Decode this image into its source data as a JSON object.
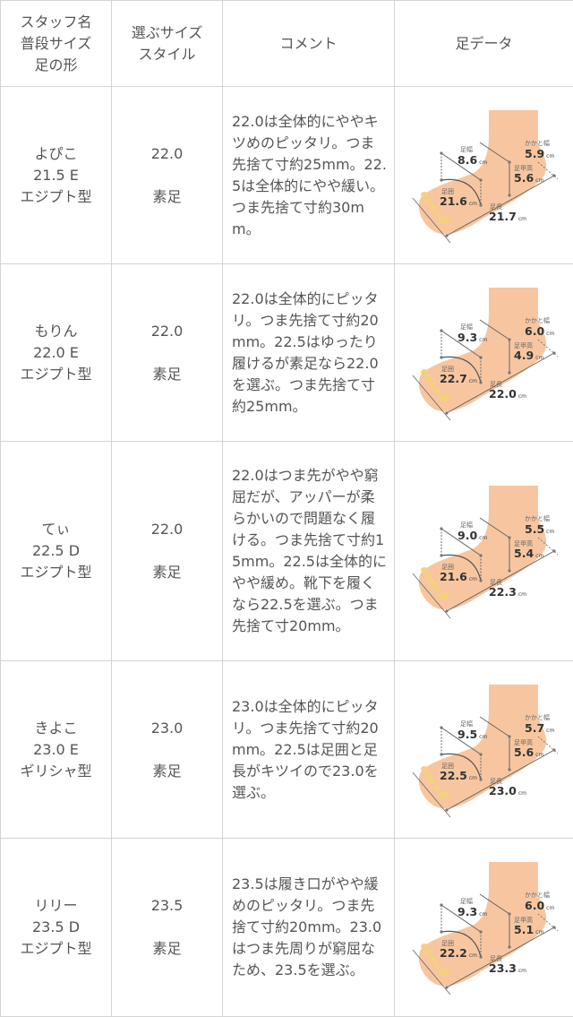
{
  "header": {
    "col1": [
      "スタッフ名",
      "普段サイズ",
      "足の形"
    ],
    "col2": [
      "選ぶサイズ",
      "スタイル"
    ],
    "col3": "コメント",
    "col4": "足データ"
  },
  "foot_labels": {
    "width": "足幅",
    "heel_width": "かかと幅",
    "instep": "足甲高",
    "girth": "足囲",
    "length": "足長",
    "unit": "cm"
  },
  "rows": [
    {
      "name": "よぴこ",
      "usual": "21.5 E",
      "shape": "エジプト型",
      "size": "22.0",
      "style": "素足",
      "comment": "22.0は全体的にややキツめのピッタリ。つま先捨て寸約25mm。22.5は全体的にやや緩い。つま先捨て寸約30mm。",
      "foot": {
        "width": "8.6",
        "heel_width": "5.9",
        "instep": "5.6",
        "girth": "21.6",
        "length": "21.7"
      }
    },
    {
      "name": "もりん",
      "usual": "22.0 E",
      "shape": "エジプト型",
      "size": "22.0",
      "style": "素足",
      "comment": "22.0は全体的にピッタリ。つま先捨て寸約20mm。22.5はゆったり履けるが素足なら22.0を選ぶ。つま先捨て寸約25mm。",
      "foot": {
        "width": "9.3",
        "heel_width": "6.0",
        "instep": "4.9",
        "girth": "22.7",
        "length": "22.0"
      }
    },
    {
      "name": "てぃ",
      "usual": "22.5 D",
      "shape": "エジプト型",
      "size": "22.0",
      "style": "素足",
      "comment": "22.0はつま先がやや窮屈だが、アッパーが柔らかいので問題なく履ける。つま先捨て寸約15mm。22.5は全体的にやや緩め。靴下を履くなら22.5を選ぶ。つま先捨て寸20mm。",
      "foot": {
        "width": "9.0",
        "heel_width": "5.5",
        "instep": "5.4",
        "girth": "21.6",
        "length": "22.3"
      }
    },
    {
      "name": "きよこ",
      "usual": "23.0 E",
      "shape": "ギリシャ型",
      "size": "23.0",
      "style": "素足",
      "comment": "23.0は全体的にピッタリ。つま先捨て寸約20mm。22.5は足囲と足長がキツイので23.0を選ぶ。",
      "foot": {
        "width": "9.5",
        "heel_width": "5.7",
        "instep": "5.6",
        "girth": "22.5",
        "length": "23.0"
      }
    },
    {
      "name": "リリー",
      "usual": "23.5 D",
      "shape": "エジプト型",
      "size": "23.5",
      "style": "素足",
      "comment": "23.5は履き口がやや緩めのピッタリ。つま先捨て寸約20mm。23.0はつま先周りが窮屈なため、23.5を選ぶ。",
      "foot": {
        "width": "9.3",
        "heel_width": "6.0",
        "instep": "5.1",
        "girth": "22.2",
        "length": "23.3"
      }
    }
  ],
  "colors": {
    "border": "#d4d4d4",
    "text": "#555555",
    "skin": "#f7c6a0",
    "toe": "#f5d27a"
  }
}
